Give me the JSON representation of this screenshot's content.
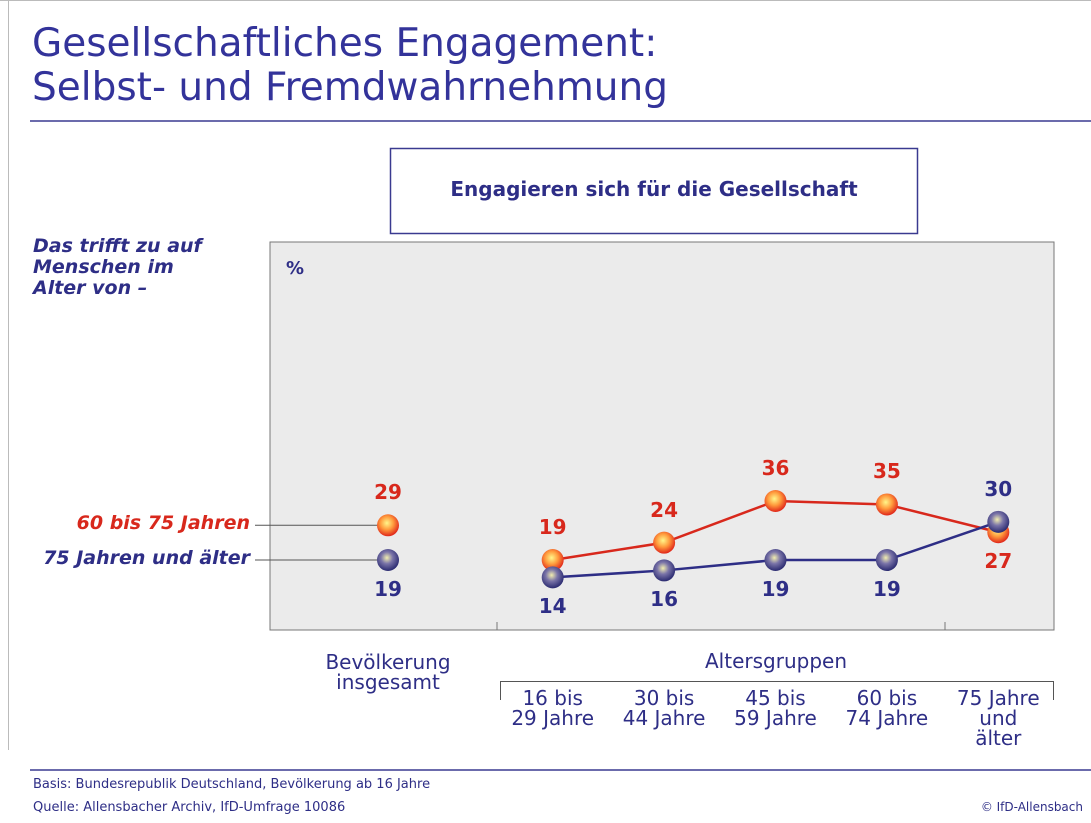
{
  "title": "Gesellschaftliches Engagement:\nSelbst- und Fremdwahrnehmung",
  "side_note": "Das trifft zu auf\nMenschen im\nAlter von –",
  "chart_data": {
    "type": "line",
    "title": "Engagieren sich für die Gesellschaft",
    "y_unit": "%",
    "categories": [
      "Bevölkerung\ninsgesamt",
      "16 bis\n29 Jahre",
      "30 bis\n44 Jahre",
      "45 bis\n59 Jahre",
      "60 bis\n74 Jahre",
      "75 Jahre\nund\nälter"
    ],
    "group_label": "Altersgruppen",
    "ylim": [
      0,
      110
    ],
    "series": [
      {
        "name": "60 bis 75 Jahren",
        "color": "#d8281c",
        "values": [
          29,
          19,
          24,
          36,
          35,
          27
        ]
      },
      {
        "name": "75 Jahren und älter",
        "color": "#2e2e86",
        "values": [
          19,
          14,
          16,
          19,
          19,
          30
        ]
      }
    ]
  },
  "footer": {
    "basis": "Basis: Bundesrepublik Deutschland, Bevölkerung ab 16 Jahre",
    "source": "Quelle: Allensbacher Archiv, IfD-Umfrage 10086",
    "copyright": "© IfD-Allensbach"
  }
}
